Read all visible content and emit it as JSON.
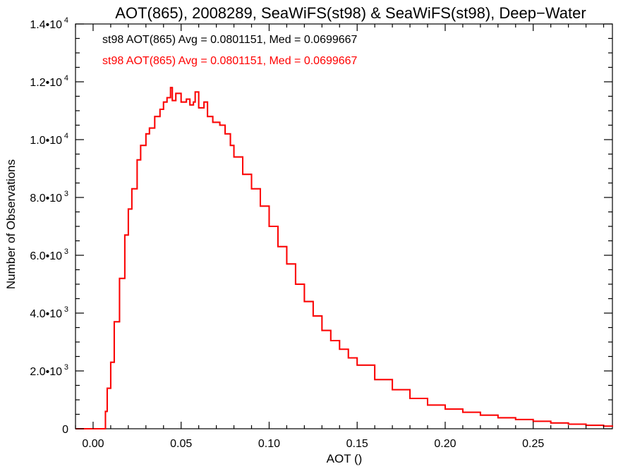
{
  "chart_data": {
    "type": "histogram",
    "title": "AOT(865), 2008289, SeaWiFS(st98) & SeaWiFS(st98), Deep−Water",
    "xlabel": "AOT ()",
    "ylabel": "Number of Observations",
    "xlim": [
      -0.01,
      0.295
    ],
    "ylim": [
      0,
      14000
    ],
    "grid": false,
    "x_ticks": [
      {
        "value": 0.0,
        "label": "0.00"
      },
      {
        "value": 0.05,
        "label": "0.05"
      },
      {
        "value": 0.1,
        "label": "0.10"
      },
      {
        "value": 0.15,
        "label": "0.15"
      },
      {
        "value": 0.2,
        "label": "0.20"
      },
      {
        "value": 0.25,
        "label": "0.25"
      }
    ],
    "y_ticks": [
      {
        "value": 0,
        "label": "0",
        "exp": ""
      },
      {
        "value": 2000,
        "label": "2.0•10",
        "exp": "3"
      },
      {
        "value": 4000,
        "label": "4.0•10",
        "exp": "3"
      },
      {
        "value": 6000,
        "label": "6.0•10",
        "exp": "3"
      },
      {
        "value": 8000,
        "label": "8.0•10",
        "exp": "3"
      },
      {
        "value": 10000,
        "label": "1.0•10",
        "exp": "4"
      },
      {
        "value": 12000,
        "label": "1.2•10",
        "exp": "4"
      },
      {
        "value": 14000,
        "label": "1.4•10",
        "exp": "4"
      }
    ],
    "annotations": [
      {
        "text": "st98 AOT(865) Avg = 0.0801151, Med = 0.0699667",
        "color": "#000000"
      },
      {
        "text": "st98 AOT(865) Avg = 0.0801151, Med = 0.0699667",
        "color": "#ff0000"
      }
    ],
    "series": [
      {
        "color": "#000000",
        "x": [
          -0.01,
          0.005,
          0.007,
          0.008,
          0.01,
          0.012,
          0.015,
          0.018,
          0.02,
          0.022,
          0.025,
          0.027,
          0.03,
          0.032,
          0.035,
          0.038,
          0.04,
          0.042,
          0.044,
          0.045,
          0.047,
          0.05,
          0.053,
          0.055,
          0.057,
          0.058,
          0.06,
          0.063,
          0.065,
          0.068,
          0.07,
          0.072,
          0.075,
          0.078,
          0.08,
          0.085,
          0.09,
          0.095,
          0.1,
          0.105,
          0.11,
          0.115,
          0.12,
          0.125,
          0.13,
          0.135,
          0.14,
          0.145,
          0.15,
          0.16,
          0.17,
          0.18,
          0.19,
          0.2,
          0.21,
          0.22,
          0.23,
          0.24,
          0.25,
          0.26,
          0.27,
          0.28,
          0.29,
          0.295
        ],
        "values": [
          0,
          0,
          600,
          1400,
          2300,
          3700,
          5200,
          6700,
          7600,
          8300,
          9300,
          9800,
          10200,
          10400,
          10800,
          11050,
          11300,
          11450,
          11800,
          11350,
          11600,
          11300,
          11400,
          11200,
          11300,
          11650,
          11100,
          11300,
          10800,
          10600,
          10600,
          10500,
          10200,
          9800,
          9400,
          8800,
          8300,
          7700,
          7000,
          6300,
          5700,
          5000,
          4400,
          3900,
          3400,
          3050,
          2750,
          2450,
          2200,
          1700,
          1350,
          1050,
          820,
          680,
          570,
          470,
          380,
          320,
          260,
          200,
          160,
          120,
          90,
          70
        ]
      },
      {
        "color": "#ff0000",
        "x": [
          -0.01,
          0.005,
          0.007,
          0.008,
          0.01,
          0.012,
          0.015,
          0.018,
          0.02,
          0.022,
          0.025,
          0.027,
          0.03,
          0.032,
          0.035,
          0.038,
          0.04,
          0.042,
          0.044,
          0.045,
          0.047,
          0.05,
          0.053,
          0.055,
          0.057,
          0.058,
          0.06,
          0.063,
          0.065,
          0.068,
          0.07,
          0.072,
          0.075,
          0.078,
          0.08,
          0.085,
          0.09,
          0.095,
          0.1,
          0.105,
          0.11,
          0.115,
          0.12,
          0.125,
          0.13,
          0.135,
          0.14,
          0.145,
          0.15,
          0.16,
          0.17,
          0.18,
          0.19,
          0.2,
          0.21,
          0.22,
          0.23,
          0.24,
          0.25,
          0.26,
          0.27,
          0.28,
          0.29,
          0.295
        ],
        "values": [
          0,
          0,
          600,
          1400,
          2300,
          3700,
          5200,
          6700,
          7600,
          8300,
          9300,
          9800,
          10200,
          10400,
          10800,
          11050,
          11300,
          11450,
          11800,
          11350,
          11600,
          11300,
          11400,
          11200,
          11300,
          11650,
          11100,
          11300,
          10800,
          10600,
          10600,
          10500,
          10200,
          9800,
          9400,
          8800,
          8300,
          7700,
          7000,
          6300,
          5700,
          5000,
          4400,
          3900,
          3400,
          3050,
          2750,
          2450,
          2200,
          1700,
          1350,
          1050,
          820,
          680,
          570,
          470,
          380,
          320,
          260,
          200,
          160,
          120,
          90,
          70
        ]
      }
    ]
  }
}
